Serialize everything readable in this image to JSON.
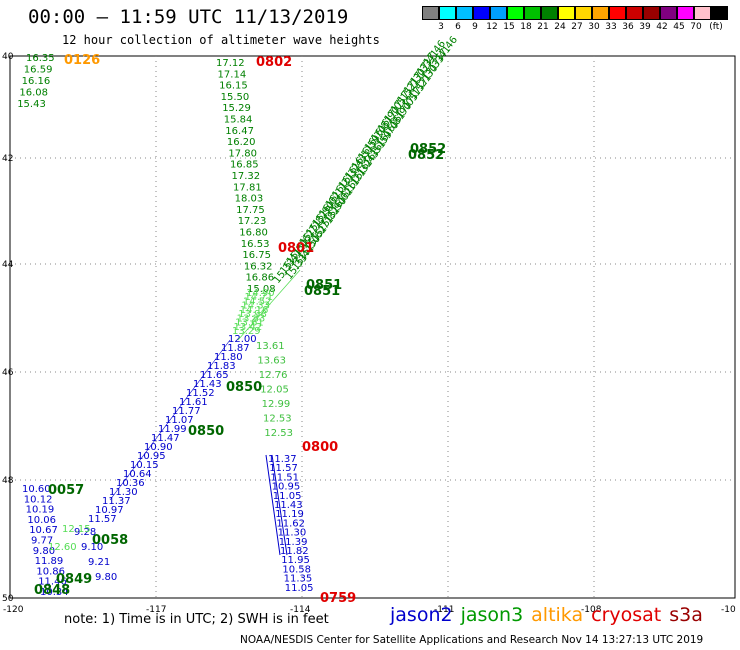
{
  "header": {
    "title": "00:00 – 11:59 UTC 11/13/2019",
    "subtitle": "12 hour collection of altimeter wave heights"
  },
  "colorbar": {
    "colors": [
      "#808080",
      "#00ffff",
      "#00bfff",
      "#0000ff",
      "#00a0ff",
      "#00ff00",
      "#00c000",
      "#008000",
      "#ffff00",
      "#ffd700",
      "#ffa500",
      "#ff0000",
      "#cc0000",
      "#990000",
      "#800080",
      "#ff00ff",
      "#ffc0cb",
      "#000000"
    ],
    "labels": [
      "3",
      "6",
      "9",
      "12",
      "15",
      "18",
      "21",
      "24",
      "27",
      "30",
      "33",
      "36",
      "39",
      "42",
      "45",
      "70"
    ],
    "unit": "(ft)"
  },
  "map": {
    "x_ticks": [
      "-120",
      "-117",
      "-114",
      "-111",
      "-108",
      "-10"
    ],
    "y_ticks": [
      "40",
      "42",
      "44",
      "46",
      "48",
      "50"
    ],
    "tracks": [
      {
        "name": "jason3-0802-dn",
        "color": "#008000",
        "labels": [
          "17.12",
          "17.14",
          "16.15",
          "15.50",
          "15.29",
          "15.84",
          "16.47",
          "16.20",
          "17.80",
          "16.85",
          "17.32",
          "17.81",
          "18.03",
          "17.75",
          "17.23",
          "16.80",
          "16.53",
          "16.75",
          "16.32",
          "16.86",
          "15.08"
        ]
      },
      {
        "name": "jason3-0126",
        "color": "#008000",
        "labels": [
          "16.35",
          "16.59",
          "16.16",
          "16.08",
          "15.43"
        ]
      },
      {
        "name": "jason3-0852",
        "color": "#008000",
        "labels": [
          "17.46",
          "17.41",
          "17.33",
          "17.30",
          "17.21",
          "17.15",
          "17.05",
          "16.90",
          "16.81",
          "16.70",
          "16.59",
          "16.51",
          "16.43",
          "16.32",
          "16.21",
          "16.11",
          "16.02",
          "15.90",
          "15.82",
          "15.71",
          "15.62",
          "15.50",
          "15.41",
          "15.33"
        ]
      },
      {
        "name": "jason3-0851",
        "color": "#55dd55",
        "labels": [
          "14.90",
          "14.71",
          "14.52",
          "14.33",
          "14.16",
          "13.98",
          "13.83",
          "13.61",
          "13.42",
          "13.29"
        ]
      },
      {
        "name": "jason3-0800",
        "color": "#40c040",
        "labels": [
          "13.61",
          "13.63",
          "12.76",
          "12.05",
          "12.99",
          "12.53",
          "12.53"
        ]
      },
      {
        "name": "jason2-0850",
        "color": "#0000cc",
        "labels": [
          "12.00",
          "11.87",
          "11.80",
          "11.83",
          "11.65",
          "11.43",
          "11.52",
          "11.61",
          "11.77",
          "11.07",
          "11.99",
          "11.47",
          "10.90",
          "10.95",
          "10.15",
          "10.64",
          "10.36",
          "11.30",
          "11.37",
          "10.97",
          "11.57"
        ]
      },
      {
        "name": "jason2-0057",
        "color": "#0000cc",
        "labels": [
          "10.60",
          "10.12",
          "10.19",
          "10.06",
          "10.67",
          "9.77",
          "9.80",
          "11.89",
          "10.86",
          "11.46",
          "10.34"
        ]
      },
      {
        "name": "jason2-0058",
        "color": "#0000cc",
        "labels": [
          "9.28",
          "9.10",
          "9.21",
          "9.80"
        ]
      },
      {
        "name": "jason2-0759",
        "color": "#0000cc",
        "labels": [
          "11.37",
          "11.57",
          "11.51",
          "10.95",
          "11.05",
          "11.43",
          "11.19",
          "11.62",
          "11.30",
          "11.39",
          "11.82",
          "11.95",
          "10.58",
          "11.35",
          "11.05"
        ]
      },
      {
        "name": "jason3-0057-light",
        "color": "#55dd55",
        "labels": [
          "12.15",
          "12.60"
        ]
      }
    ],
    "time_labels": [
      {
        "text": "0126",
        "color": "#ff9900"
      },
      {
        "text": "0802",
        "color": "#e00000"
      },
      {
        "text": "0852",
        "color": "#006600"
      },
      {
        "text": "0852",
        "color": "#006600"
      },
      {
        "text": "0801",
        "color": "#e00000"
      },
      {
        "text": "0851",
        "color": "#006600"
      },
      {
        "text": "0851",
        "color": "#006600"
      },
      {
        "text": "0850",
        "color": "#006600"
      },
      {
        "text": "0850",
        "color": "#006600"
      },
      {
        "text": "0800",
        "color": "#e00000"
      },
      {
        "text": "0057",
        "color": "#006600"
      },
      {
        "text": "0058",
        "color": "#006600"
      },
      {
        "text": "0849",
        "color": "#006600"
      },
      {
        "text": "0848",
        "color": "#006600"
      },
      {
        "text": "0759",
        "color": "#e00000"
      }
    ]
  },
  "note": "note: 1) Time is in UTC; 2) SWH is in feet",
  "legend": [
    {
      "text": "jason2",
      "color": "#0000cc"
    },
    {
      "text": "jason3",
      "color": "#009900"
    },
    {
      "text": "altika",
      "color": "#ff9900"
    },
    {
      "text": "cryosat",
      "color": "#e00000"
    },
    {
      "text": "s3a",
      "color": "#990000"
    }
  ],
  "credits": "NOAA/NESDIS Center for Satellite Applications and Research   Nov 14 13:27:13 UTC 2019"
}
